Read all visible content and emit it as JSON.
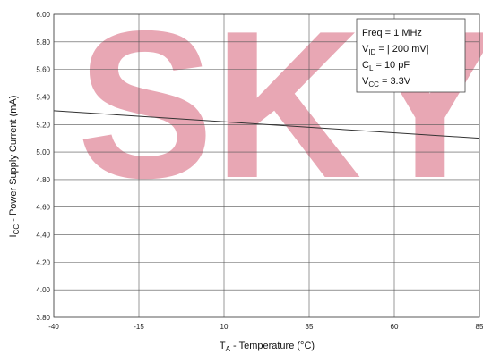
{
  "watermark": {
    "text": "SKY",
    "color": "#e8a7b4"
  },
  "chart_data": {
    "type": "line",
    "title": "",
    "xlabel": {
      "main": "T",
      "sub": "A",
      "rest": " - Temperature (°C)"
    },
    "ylabel": {
      "main": "I",
      "sub": "CC",
      "rest": " - Power Supply Current (mA)"
    },
    "x_ticks": [
      -40,
      -15,
      10,
      35,
      60,
      85
    ],
    "x_tick_labels": [
      "-40",
      "-15",
      "10",
      "35",
      "60",
      "85"
    ],
    "y_ticks": [
      3.8,
      4.0,
      4.2,
      4.4,
      4.6,
      4.8,
      5.0,
      5.2,
      5.4,
      5.6,
      5.8,
      6.0
    ],
    "y_tick_labels": [
      "3.80",
      "4.00",
      "4.20",
      "4.40",
      "4.60",
      "4.80",
      "5.00",
      "5.20",
      "5.40",
      "5.60",
      "5.80",
      "6.00"
    ],
    "xlim": [
      -40,
      85
    ],
    "ylim": [
      3.8,
      6.0
    ],
    "grid": true,
    "series": [
      {
        "x": [
          -40,
          85
        ],
        "y": [
          5.3,
          5.1
        ],
        "color": "#333333"
      }
    ],
    "conditions": {
      "line1": "Freq = 1 MHz",
      "line2": {
        "main": "V",
        "sub": "ID",
        "rest": "  = | 200 mV|"
      },
      "line3": {
        "main": "C",
        "sub": "L",
        "rest": "   = 10 pF"
      },
      "line4": {
        "main": "V",
        "sub": "CC",
        "rest": " = 3.3V"
      }
    }
  }
}
